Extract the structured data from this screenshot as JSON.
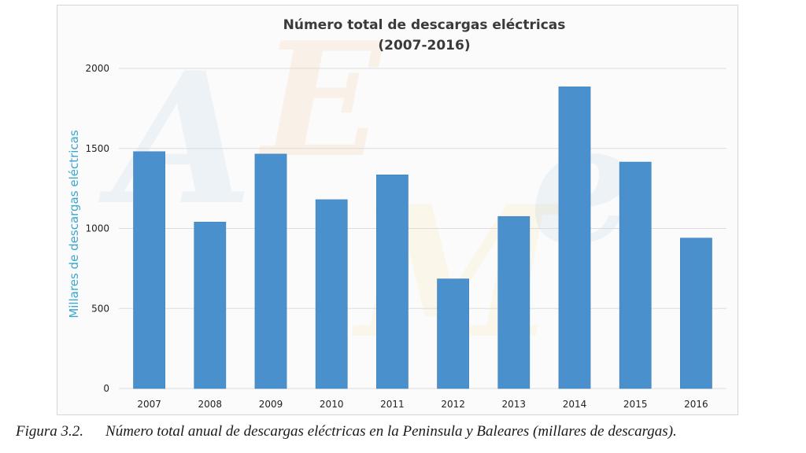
{
  "figure": {
    "number_label": "Figura 3.2.",
    "caption_text": "Número total anual de descargas eléctricas en la Peninsula y Baleares (millares de descargas)."
  },
  "watermark": {
    "text": "AEMet",
    "colors": [
      "#7fa6d6",
      "#f0a040",
      "#f2d060"
    ]
  },
  "chart_data": {
    "type": "bar",
    "title": "Número total de descargas eléctricas",
    "subtitle": "(2007-2016)",
    "xlabel": "",
    "ylabel": "Millares de descargas eléctricas",
    "categories": [
      "2007",
      "2008",
      "2009",
      "2010",
      "2011",
      "2012",
      "2013",
      "2014",
      "2015",
      "2016"
    ],
    "values": [
      1480,
      1040,
      1465,
      1180,
      1335,
      685,
      1075,
      1885,
      1415,
      940
    ],
    "ylim": [
      0,
      2000
    ],
    "yticks": [
      0,
      500,
      1000,
      1500,
      2000
    ],
    "grid": true,
    "legend": "none",
    "colors": {
      "bar": "#4a90cc",
      "bar_edge": "#3f7fb8",
      "ylabel": "#3aa6cf",
      "grid": "#dcdcdc"
    }
  }
}
